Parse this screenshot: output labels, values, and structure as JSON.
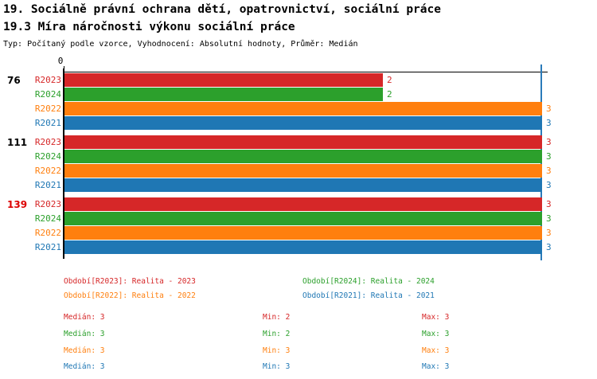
{
  "header": {
    "title": "19. Sociálně právní ochrana dětí, opatrovnictví, sociální práce",
    "subtitle": "19.3 Míra náročnosti výkonu sociální práce",
    "meta": "Typ: Počítaný podle vzorce, Vyhodnocení: Absolutní hodnoty, Průměr: Medián"
  },
  "axis": {
    "origin_label": "0"
  },
  "colors": {
    "R2023": "#d62728",
    "R2024": "#2ca02c",
    "R2022": "#ff7f0e",
    "R2021": "#1f77b4",
    "group_highlight": "#dd0000",
    "group_normal": "#000000",
    "median_line": "#2b7bba",
    "axis": "#000000"
  },
  "chart_data": {
    "type": "bar",
    "orientation": "horizontal",
    "xlim": [
      0,
      3
    ],
    "median_line_x": 3,
    "grid": false,
    "series_order": [
      "R2023",
      "R2024",
      "R2022",
      "R2021"
    ],
    "series_colors": {
      "R2023": "#d62728",
      "R2024": "#2ca02c",
      "R2022": "#ff7f0e",
      "R2021": "#1f77b4"
    },
    "groups": [
      {
        "label": "76",
        "label_color": "#000000",
        "bars": [
          {
            "series": "R2023",
            "value": 2,
            "value_label": "2"
          },
          {
            "series": "R2024",
            "value": 2,
            "value_label": "2"
          },
          {
            "series": "R2022",
            "value": 3,
            "value_label": "3"
          },
          {
            "series": "R2021",
            "value": 3,
            "value_label": "3"
          }
        ]
      },
      {
        "label": "111",
        "label_color": "#000000",
        "bars": [
          {
            "series": "R2023",
            "value": 3,
            "value_label": "3"
          },
          {
            "series": "R2024",
            "value": 3,
            "value_label": "3"
          },
          {
            "series": "R2022",
            "value": 3,
            "value_label": "3"
          },
          {
            "series": "R2021",
            "value": 3,
            "value_label": "3"
          }
        ]
      },
      {
        "label": "139",
        "label_color": "#dd0000",
        "bars": [
          {
            "series": "R2023",
            "value": 3,
            "value_label": "3"
          },
          {
            "series": "R2024",
            "value": 3,
            "value_label": "3"
          },
          {
            "series": "R2022",
            "value": 3,
            "value_label": "3"
          },
          {
            "series": "R2021",
            "value": 3,
            "value_label": "3"
          }
        ]
      }
    ]
  },
  "legend": {
    "items": [
      {
        "label": "Období[R2023]: Realita - 2023",
        "color": "#d62728"
      },
      {
        "label": "Období[R2024]: Realita - 2024",
        "color": "#2ca02c"
      },
      {
        "label": "Období[R2022]: Realita - 2022",
        "color": "#ff7f0e"
      },
      {
        "label": "Období[R2021]: Realita - 2021",
        "color": "#1f77b4"
      }
    ]
  },
  "stats": {
    "rows": [
      {
        "series": "R2023",
        "color": "#d62728",
        "median": "Medián: 3",
        "min": "Min: 2",
        "max": "Max: 3"
      },
      {
        "series": "R2024",
        "color": "#2ca02c",
        "median": "Medián: 3",
        "min": "Min: 2",
        "max": "Max: 3"
      },
      {
        "series": "R2022",
        "color": "#ff7f0e",
        "median": "Medián: 3",
        "min": "Min: 3",
        "max": "Max: 3"
      },
      {
        "series": "R2021",
        "color": "#1f77b4",
        "median": "Medián: 3",
        "min": "Min: 3",
        "max": "Max: 3"
      }
    ]
  }
}
